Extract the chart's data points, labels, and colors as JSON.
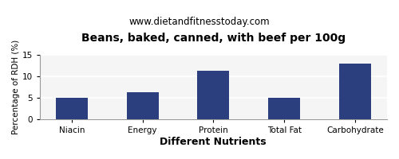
{
  "title": "Beans, baked, canned, with beef per 100g",
  "subtitle": "www.dietandfitnesstoday.com",
  "xlabel": "Different Nutrients",
  "ylabel": "Percentage of RDH (%)",
  "categories": [
    "Niacin",
    "Energy",
    "Protein",
    "Total Fat",
    "Carbohydrate"
  ],
  "values": [
    5.0,
    6.2,
    11.2,
    5.0,
    13.0
  ],
  "bar_color": "#2b3f7e",
  "ylim": [
    0,
    15
  ],
  "yticks": [
    0,
    5,
    10,
    15
  ],
  "background_color": "#ffffff",
  "plot_bg_color": "#f5f5f5",
  "title_fontsize": 10,
  "subtitle_fontsize": 8.5,
  "xlabel_fontsize": 9,
  "ylabel_fontsize": 7.5,
  "tick_fontsize": 7.5,
  "xlabel_fontweight": "bold",
  "bar_width": 0.45
}
